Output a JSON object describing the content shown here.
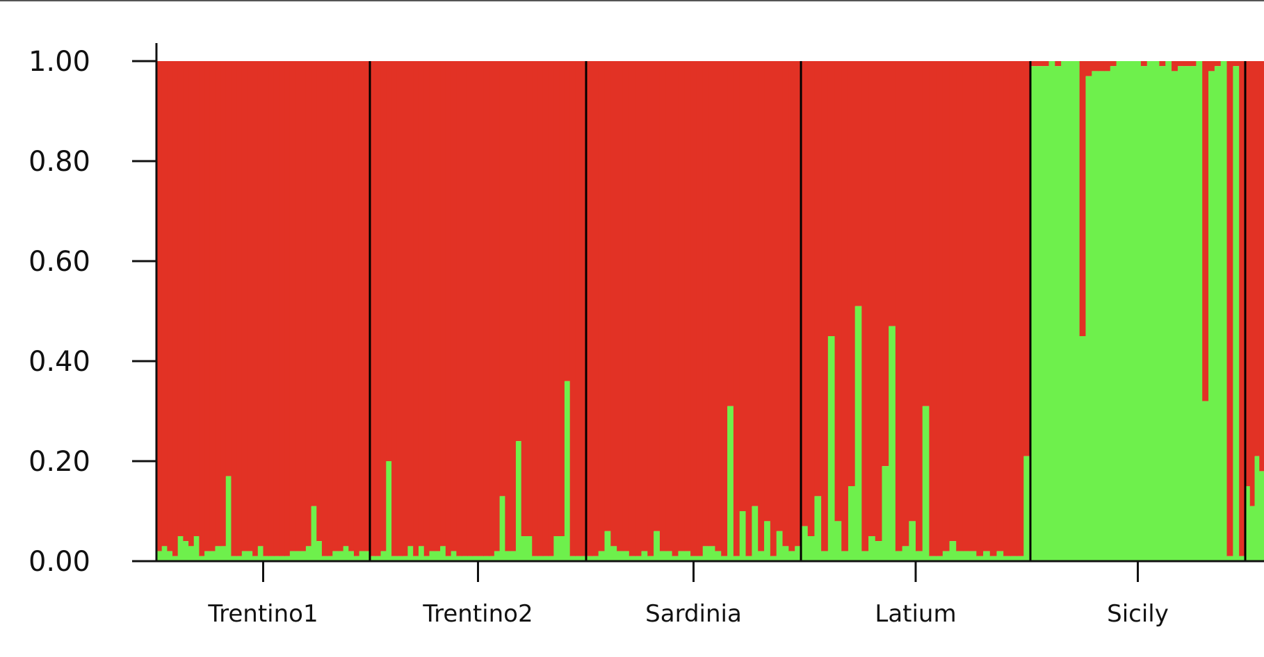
{
  "chart_data": {
    "type": "bar",
    "stacked": true,
    "title": "",
    "xlabel": "",
    "ylabel": "",
    "ylim": [
      0,
      1
    ],
    "yticks": [
      "0.00",
      "0.20",
      "0.40",
      "0.60",
      "0.80",
      "1.00"
    ],
    "grid": false,
    "legend": "none",
    "colors": {
      "green": "#6ef04c",
      "red": "#e23225",
      "separator": "#000000",
      "axis": "#111111"
    },
    "populations": [
      {
        "name": "Trentino1",
        "green": [
          0.02,
          0.03,
          0.02,
          0.01,
          0.05,
          0.04,
          0.03,
          0.05,
          0.01,
          0.02,
          0.02,
          0.03,
          0.03,
          0.17,
          0.01,
          0.01,
          0.02,
          0.02,
          0.01,
          0.03,
          0.01,
          0.01,
          0.01,
          0.01,
          0.01,
          0.02,
          0.02,
          0.02,
          0.03,
          0.11,
          0.04,
          0.01,
          0.01,
          0.02,
          0.02,
          0.03,
          0.02,
          0.01,
          0.02,
          0.02
        ]
      },
      {
        "name": "Trentino2",
        "green": [
          0.01,
          0.01,
          0.02,
          0.2,
          0.01,
          0.01,
          0.01,
          0.03,
          0.01,
          0.03,
          0.01,
          0.02,
          0.02,
          0.03,
          0.01,
          0.02,
          0.01,
          0.01,
          0.01,
          0.01,
          0.01,
          0.01,
          0.01,
          0.02,
          0.13,
          0.02,
          0.02,
          0.24,
          0.05,
          0.05,
          0.01,
          0.01,
          0.01,
          0.01,
          0.05,
          0.05,
          0.36,
          0.01,
          0.01,
          0.01
        ]
      },
      {
        "name": "Sardinia",
        "green": [
          0.01,
          0.01,
          0.02,
          0.06,
          0.03,
          0.02,
          0.02,
          0.01,
          0.01,
          0.02,
          0.01,
          0.06,
          0.02,
          0.02,
          0.01,
          0.02,
          0.02,
          0.01,
          0.01,
          0.03,
          0.03,
          0.02,
          0.01,
          0.31,
          0.01,
          0.1,
          0.01,
          0.11,
          0.02,
          0.08,
          0.01,
          0.06,
          0.03,
          0.02,
          0.03
        ]
      },
      {
        "name": "Latium",
        "green": [
          0.07,
          0.05,
          0.13,
          0.02,
          0.45,
          0.08,
          0.02,
          0.15,
          0.51,
          0.02,
          0.05,
          0.04,
          0.19,
          0.47,
          0.02,
          0.03,
          0.08,
          0.02,
          0.31,
          0.01,
          0.01,
          0.02,
          0.04,
          0.02,
          0.02,
          0.02,
          0.01,
          0.02,
          0.01,
          0.02,
          0.01,
          0.01,
          0.01,
          0.21
        ]
      },
      {
        "name": "Sicily",
        "green": [
          0.99,
          0.99,
          0.99,
          1.0,
          0.99,
          1.0,
          1.0,
          1.0,
          0.45,
          0.97,
          0.98,
          0.98,
          0.98,
          0.99,
          1.0,
          1.0,
          1.0,
          1.0,
          0.99,
          1.0,
          1.0,
          0.99,
          1.0,
          0.98,
          0.99,
          0.99,
          0.99,
          1.0,
          0.32,
          0.98,
          0.99,
          1.0,
          0.01,
          0.99,
          0.01
        ]
      },
      {
        "name": "",
        "green": [
          0.15,
          0.11,
          0.21,
          0.18
        ]
      }
    ]
  }
}
